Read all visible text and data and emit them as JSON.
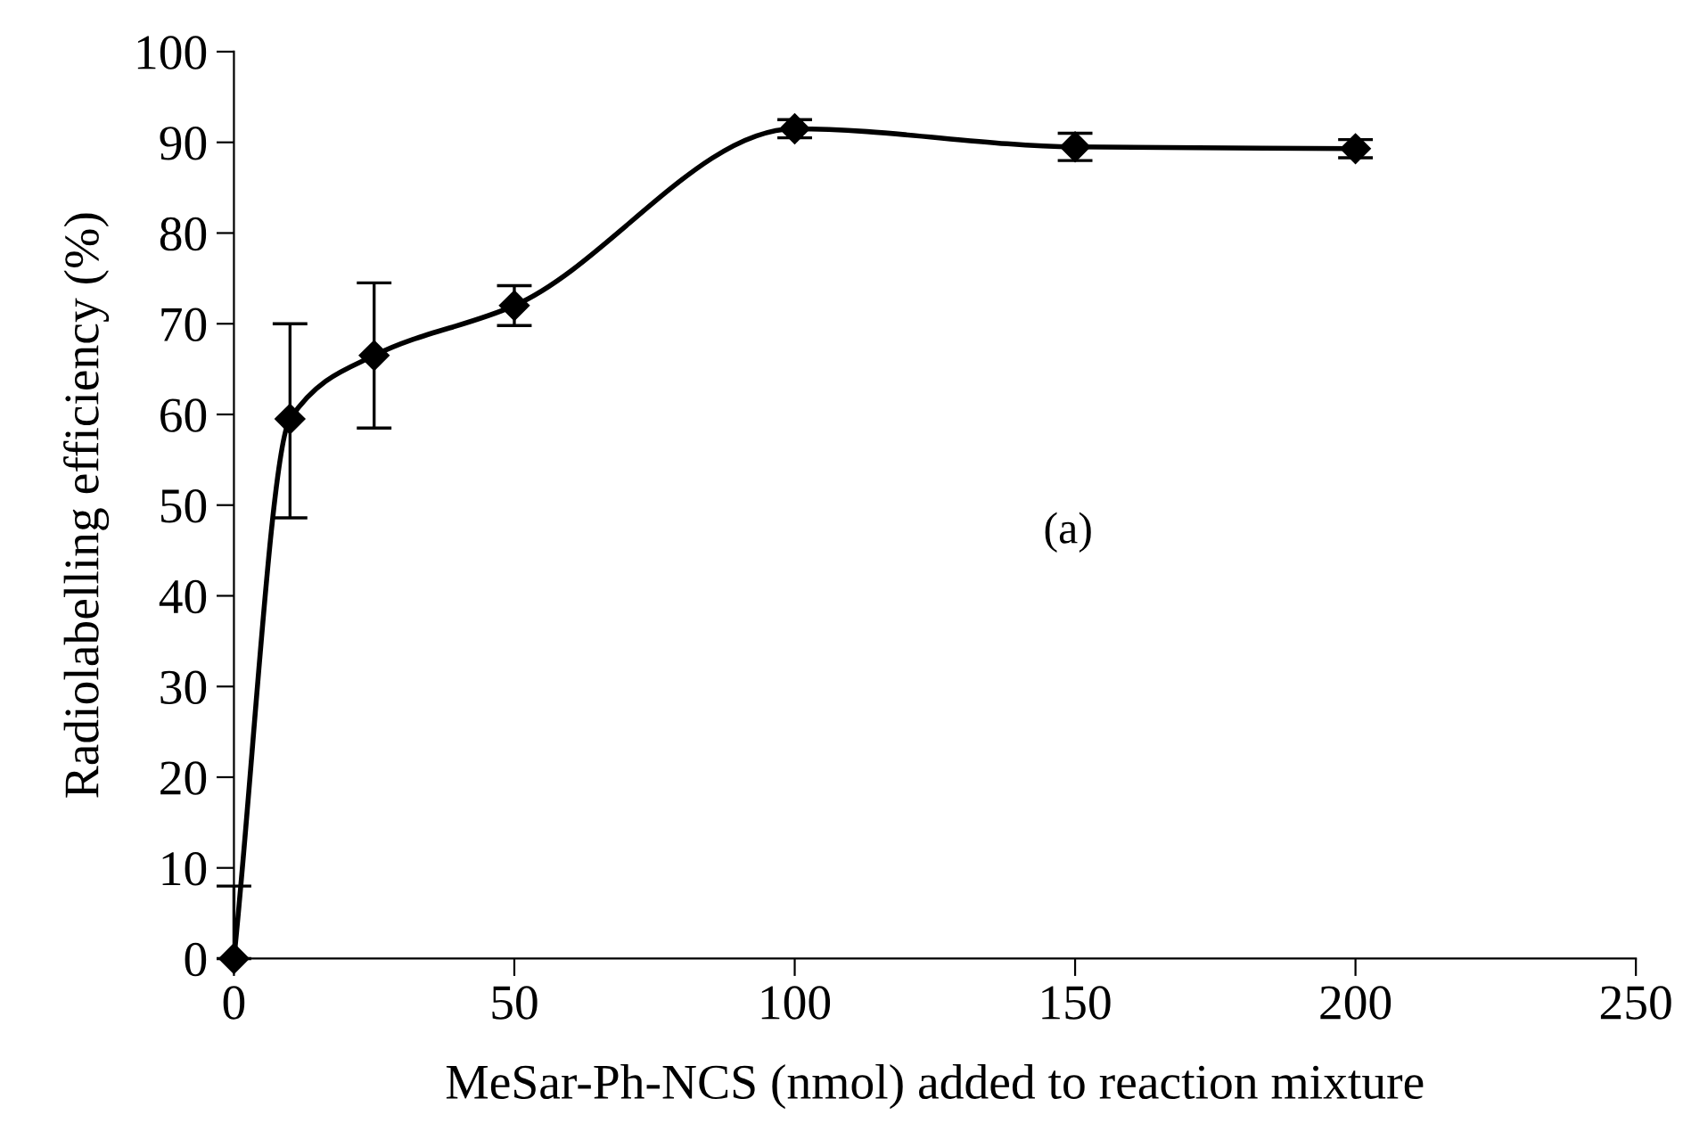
{
  "chart_data": {
    "type": "line",
    "xlabel": "MeSar-Ph-NCS (nmol) added to reaction mixture",
    "ylabel": "Radiolabelling efficiency (%)",
    "x": [
      0,
      10,
      25,
      50,
      100,
      150,
      200
    ],
    "series": [
      {
        "color": "#000000",
        "values": [
          0,
          59.5,
          66.5,
          72,
          91.5,
          89.5,
          89.3
        ],
        "errors": [
          [
            0,
            8
          ],
          [
            48.6,
            70
          ],
          [
            58.5,
            74.5
          ],
          [
            69.8,
            74.2
          ],
          [
            90.5,
            92.5
          ],
          [
            88,
            91
          ],
          [
            88.3,
            90.3
          ]
        ]
      }
    ],
    "xlim": [
      0,
      250
    ],
    "xticks": [
      0,
      50,
      100,
      150,
      200,
      250
    ],
    "ylim": [
      0,
      100
    ],
    "yticks": [
      0,
      10,
      20,
      30,
      40,
      50,
      60,
      70,
      80,
      90,
      100
    ],
    "marker": "diamond",
    "line_style": "solid",
    "grid": false,
    "legend": false,
    "annotations": [
      "(a)"
    ]
  }
}
